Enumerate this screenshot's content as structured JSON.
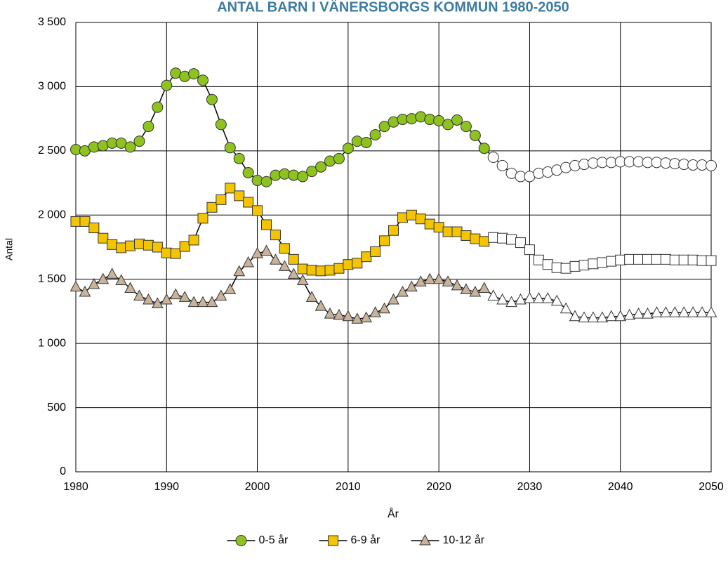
{
  "chart_data": {
    "type": "line",
    "title": "ANTAL BARN I VÄNERSBORGS KOMMUN 1980-2050",
    "x_label": "År",
    "y_label": "Antal",
    "x": [
      1980,
      1981,
      1982,
      1983,
      1984,
      1985,
      1986,
      1987,
      1988,
      1989,
      1990,
      1991,
      1992,
      1993,
      1994,
      1995,
      1996,
      1997,
      1998,
      1999,
      2000,
      2001,
      2002,
      2003,
      2004,
      2005,
      2006,
      2007,
      2008,
      2009,
      2010,
      2011,
      2012,
      2013,
      2014,
      2015,
      2016,
      2017,
      2018,
      2019,
      2020,
      2021,
      2022,
      2023,
      2024,
      2025,
      2026,
      2027,
      2028,
      2029,
      2030,
      2031,
      2032,
      2033,
      2034,
      2035,
      2036,
      2037,
      2038,
      2039,
      2040,
      2041,
      2042,
      2043,
      2044,
      2045,
      2046,
      2047,
      2048,
      2049,
      2050
    ],
    "xlim": [
      1980,
      2050
    ],
    "xticks": [
      1980,
      1990,
      2000,
      2010,
      2020,
      2030,
      2040,
      2050
    ],
    "ylim": [
      0,
      3500
    ],
    "yticks": [
      0,
      500,
      {
        "value": 1000,
        "label": "1 000"
      },
      {
        "value": 1500,
        "label": "1 500"
      },
      {
        "value": 2000,
        "label": "2 000"
      },
      {
        "value": 2500,
        "label": "2 500"
      },
      {
        "value": 3000,
        "label": "3 000"
      },
      {
        "value": 3500,
        "label": "3 500"
      }
    ],
    "grid": true,
    "legend": "bottom",
    "projected_from": 2026,
    "projected_fill": "#ffffff",
    "series": [
      {
        "name": "0-5 år",
        "color": "#8dc21f",
        "marker": "circle",
        "values": [
          2510,
          2500,
          2530,
          2540,
          2560,
          2560,
          2530,
          2575,
          2690,
          2840,
          3010,
          3105,
          3080,
          3100,
          3050,
          2900,
          2705,
          2525,
          2440,
          2330,
          2270,
          2260,
          2310,
          2320,
          2310,
          2300,
          2340,
          2375,
          2420,
          2440,
          2520,
          2575,
          2565,
          2625,
          2690,
          2725,
          2745,
          2750,
          2765,
          2745,
          2735,
          2705,
          2740,
          2690,
          2620,
          2520,
          2450,
          2385,
          2325,
          2300,
          2300,
          2325,
          2335,
          2350,
          2370,
          2385,
          2395,
          2405,
          2410,
          2410,
          2415,
          2415,
          2415,
          2410,
          2410,
          2405,
          2400,
          2395,
          2390,
          2390,
          2385
        ]
      },
      {
        "name": "6-9 år",
        "color": "#f5c400",
        "marker": "square",
        "values": [
          1950,
          1950,
          1900,
          1820,
          1770,
          1745,
          1760,
          1775,
          1765,
          1750,
          1705,
          1700,
          1755,
          1805,
          1975,
          2060,
          2120,
          2210,
          2150,
          2100,
          2035,
          1925,
          1845,
          1740,
          1655,
          1580,
          1570,
          1565,
          1570,
          1585,
          1615,
          1625,
          1675,
          1715,
          1800,
          1880,
          1980,
          2000,
          1970,
          1930,
          1905,
          1870,
          1870,
          1840,
          1815,
          1795,
          1825,
          1820,
          1810,
          1785,
          1730,
          1650,
          1615,
          1590,
          1585,
          1600,
          1610,
          1620,
          1630,
          1640,
          1650,
          1655,
          1655,
          1655,
          1655,
          1655,
          1650,
          1650,
          1650,
          1645,
          1645
        ]
      },
      {
        "name": "10-12 år",
        "color": "#c9b39b",
        "marker": "triangle",
        "values": [
          1440,
          1400,
          1460,
          1500,
          1540,
          1490,
          1430,
          1370,
          1340,
          1310,
          1340,
          1380,
          1360,
          1320,
          1320,
          1320,
          1370,
          1420,
          1560,
          1630,
          1700,
          1720,
          1650,
          1600,
          1540,
          1490,
          1360,
          1290,
          1230,
          1220,
          1210,
          1190,
          1200,
          1240,
          1270,
          1340,
          1400,
          1440,
          1480,
          1500,
          1500,
          1480,
          1450,
          1420,
          1400,
          1430,
          1370,
          1340,
          1320,
          1340,
          1350,
          1350,
          1350,
          1330,
          1270,
          1210,
          1200,
          1200,
          1200,
          1210,
          1210,
          1220,
          1230,
          1230,
          1240,
          1240,
          1240,
          1240,
          1240,
          1240,
          1240
        ]
      }
    ]
  }
}
